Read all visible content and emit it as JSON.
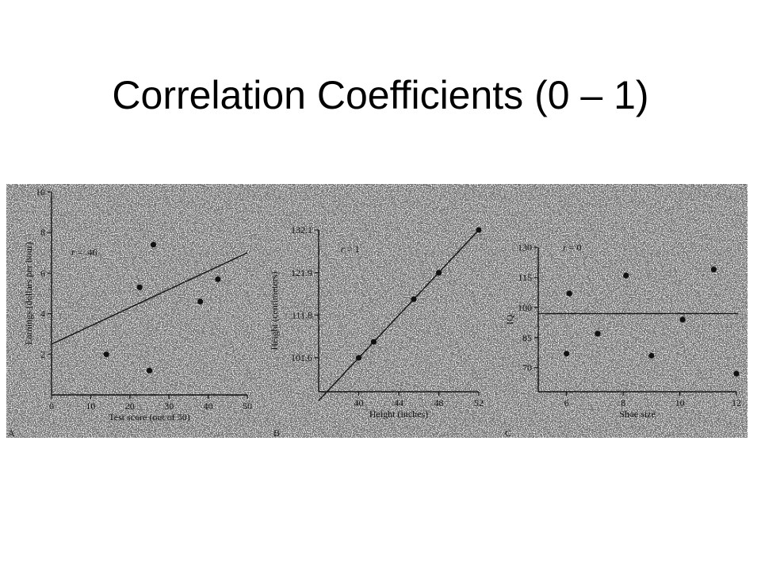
{
  "title": "Correlation Coefficients (0 – 1)",
  "chart_data": [
    {
      "type": "scatter",
      "panel_label": "A",
      "annotation": "r = .46",
      "annotation_symbol": "r",
      "annotation_value": " = .46",
      "xlabel": "Test score (out of 50)",
      "ylabel": "Earnings (dollars per hour)",
      "xlim": [
        0,
        50
      ],
      "ylim": [
        0,
        10
      ],
      "x_ticks": [
        0,
        10,
        20,
        30,
        40,
        50
      ],
      "y_ticks": [
        2,
        4,
        6,
        8,
        10
      ],
      "x_tick_labels": [
        "0",
        "10",
        "20",
        "30",
        "40",
        "50"
      ],
      "y_tick_labels": [
        "2",
        "4",
        "6",
        "8",
        "10"
      ],
      "points": [
        {
          "x": 14,
          "y": 2.0
        },
        {
          "x": 22.5,
          "y": 5.3
        },
        {
          "x": 25,
          "y": 1.2
        },
        {
          "x": 26,
          "y": 7.4
        },
        {
          "x": 38,
          "y": 4.6
        },
        {
          "x": 42.5,
          "y": 5.7
        }
      ],
      "fit_line": {
        "x": [
          0,
          50
        ],
        "y": [
          2.5,
          7.0
        ]
      }
    },
    {
      "type": "scatter",
      "panel_label": "B",
      "annotation": "r = 1",
      "annotation_symbol": "r",
      "annotation_value": " = 1",
      "xlabel": "Height (inches)",
      "ylabel": "Height (centimeters)",
      "xlim": [
        36,
        52
      ],
      "ylim": [
        93.5,
        132.1
      ],
      "x_ticks": [
        40,
        44,
        48,
        52
      ],
      "y_ticks": [
        101.6,
        111.8,
        121.9,
        132.1
      ],
      "x_tick_labels": [
        "40",
        "44",
        "48",
        "52"
      ],
      "y_tick_labels": [
        "101.6",
        "111.8",
        "121.9",
        "132.1"
      ],
      "points": [
        {
          "x": 40,
          "y": 101.6
        },
        {
          "x": 41.5,
          "y": 105.4
        },
        {
          "x": 45.5,
          "y": 115.6
        },
        {
          "x": 48,
          "y": 121.9
        },
        {
          "x": 52,
          "y": 132.1
        }
      ],
      "fit_line": {
        "x": [
          36,
          52
        ],
        "y": [
          91.4,
          132.1
        ]
      }
    },
    {
      "type": "scatter",
      "panel_label": "C",
      "annotation": "r = 0",
      "annotation_symbol": "r",
      "annotation_value": " = 0",
      "xlabel": "Shoe size",
      "ylabel": "IQ",
      "xlim": [
        5,
        12
      ],
      "ylim": [
        58,
        130
      ],
      "x_ticks": [
        6,
        8,
        10,
        12
      ],
      "y_ticks": [
        70,
        85,
        100,
        115,
        130
      ],
      "x_tick_labels": [
        "6",
        "8",
        "10",
        "12"
      ],
      "y_tick_labels": [
        "70",
        "85",
        "100",
        "115",
        "130"
      ],
      "points": [
        {
          "x": 6,
          "y": 77
        },
        {
          "x": 6.1,
          "y": 107
        },
        {
          "x": 7.1,
          "y": 87
        },
        {
          "x": 8.1,
          "y": 116
        },
        {
          "x": 9,
          "y": 76
        },
        {
          "x": 10.1,
          "y": 94
        },
        {
          "x": 11.2,
          "y": 119
        },
        {
          "x": 12,
          "y": 67
        }
      ],
      "fit_line": {
        "x": [
          5,
          12.05
        ],
        "y": [
          97,
          97
        ]
      }
    }
  ]
}
